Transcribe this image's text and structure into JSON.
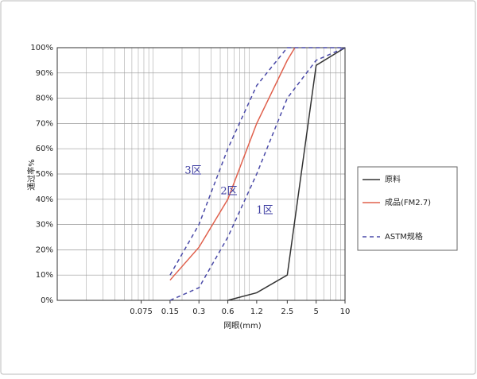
{
  "chart_data": {
    "type": "line",
    "x_label": "网眼(mm)",
    "y_label": "通过率%",
    "log_x": true,
    "grid": true,
    "legend": "right",
    "xlim": [
      0.01,
      10
    ],
    "ylim": [
      0,
      100
    ],
    "xticks": [
      0.075,
      0.15,
      0.3,
      0.6,
      1.2,
      2.5,
      5,
      10
    ],
    "yticks": [
      {
        "value": 0,
        "label": "0%"
      },
      {
        "value": 10,
        "label": "10%"
      },
      {
        "value": 20,
        "label": "20%"
      },
      {
        "value": 30,
        "label": "30%"
      },
      {
        "value": 40,
        "label": "40%"
      },
      {
        "value": 50,
        "label": "50%"
      },
      {
        "value": 60,
        "label": "60%"
      },
      {
        "value": 70,
        "label": "70%"
      },
      {
        "value": 80,
        "label": "80%"
      },
      {
        "value": 90,
        "label": "90%"
      },
      {
        "value": 100,
        "label": "100%"
      }
    ],
    "series": [
      {
        "name": "原料",
        "color": "#333333",
        "dashed": false,
        "x": [
          0.6,
          1.2,
          2.5,
          5,
          10
        ],
        "values": [
          0,
          3,
          10,
          93,
          100
        ]
      },
      {
        "name": "成品(FM2.7)",
        "color": "#e0604c",
        "dashed": false,
        "x": [
          0.15,
          0.3,
          0.6,
          1.2,
          2.5,
          3
        ],
        "values": [
          8,
          21,
          40,
          70,
          95,
          100
        ]
      },
      {
        "name": "ASTM规格",
        "color": "#4a4aa8",
        "dashed": true,
        "x": [
          0.15,
          0.3,
          0.6,
          1.2,
          2.5,
          5,
          10
        ],
        "lower": [
          0,
          5,
          25,
          50,
          80,
          95,
          100
        ],
        "upper": [
          10,
          30,
          60,
          85,
          100,
          100,
          100
        ]
      }
    ],
    "annotations": [
      "3区",
      "2区",
      "1区"
    ]
  }
}
